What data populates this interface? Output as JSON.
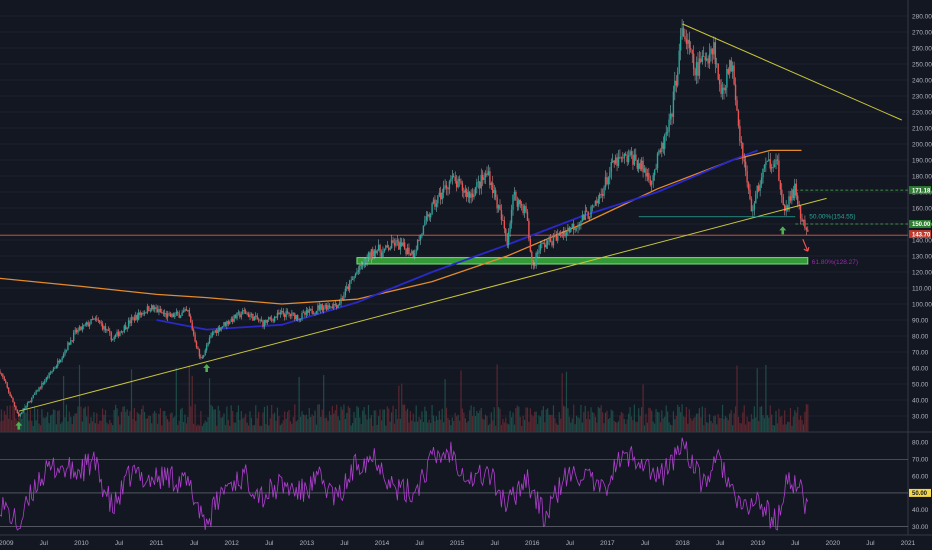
{
  "chart_data": [
    {
      "type": "candlestick",
      "x_axis_type": "date",
      "ylim": [
        20,
        285
      ],
      "xlim": [
        "2008-12",
        "2021-01"
      ],
      "y_ticks": [
        "30.00",
        "40.00",
        "50.00",
        "60.00",
        "70.00",
        "80.00",
        "90.00",
        "100.00",
        "110.00",
        "120.00",
        "130.00",
        "140.00",
        "150.00",
        "160.00",
        "170.00",
        "180.00",
        "190.00",
        "200.00",
        "210.00",
        "220.00",
        "230.00",
        "240.00",
        "250.00",
        "260.00",
        "270.00",
        "280.00"
      ],
      "x_ticks": [
        "2009",
        "Jul",
        "2010",
        "Jul",
        "2011",
        "Jul",
        "2012",
        "Jul",
        "2013",
        "Jul",
        "2014",
        "Jul",
        "2015",
        "Jul",
        "2016",
        "Jul",
        "2017",
        "Jul",
        "2018",
        "Jul",
        "2019",
        "Jul",
        "2020",
        "Jul",
        "2021"
      ],
      "price_series": {
        "t": [
          "2008-12",
          "2009-03",
          "2009-06",
          "2009-09",
          "2009-12",
          "2010-03",
          "2010-04",
          "2010-06",
          "2010-09",
          "2010-12",
          "2011-03",
          "2011-06",
          "2011-08",
          "2011-10",
          "2011-12",
          "2012-03",
          "2012-06",
          "2012-09",
          "2012-12",
          "2013-03",
          "2013-06",
          "2013-09",
          "2013-12",
          "2014-01",
          "2014-03",
          "2014-06",
          "2014-09",
          "2014-12",
          "2015-03",
          "2015-06",
          "2015-09",
          "2015-10",
          "2015-12",
          "2016-01",
          "2016-02",
          "2016-05",
          "2016-08",
          "2016-11",
          "2017-02",
          "2017-05",
          "2017-08",
          "2017-11",
          "2018-01",
          "2018-03",
          "2018-06",
          "2018-07",
          "2018-09",
          "2018-10",
          "2018-12",
          "2019-02",
          "2019-04",
          "2019-05",
          "2019-06",
          "2019-07",
          "2019-08",
          "2019-09"
        ],
        "close": [
          58,
          30,
          46,
          62,
          82,
          90,
          88,
          78,
          90,
          98,
          92,
          95,
          65,
          82,
          88,
          95,
          88,
          94,
          92,
          98,
          100,
          120,
          135,
          132,
          138,
          132,
          160,
          178,
          168,
          182,
          140,
          168,
          158,
          122,
          135,
          142,
          150,
          160,
          188,
          192,
          178,
          212,
          272,
          245,
          262,
          232,
          252,
          210,
          158,
          185,
          192,
          158,
          164,
          172,
          152,
          143
        ]
      },
      "volume_axis_labels": [
        "50.00",
        "40.00",
        "30.00"
      ],
      "indicators": {
        "ma_orange": {
          "t": [
            "2008-12",
            "2010-01",
            "2011-01",
            "2011-09",
            "2012-09",
            "2013-09",
            "2014-09",
            "2015-09",
            "2016-09",
            "2017-09",
            "2018-09",
            "2019-03",
            "2019-08"
          ],
          "v": [
            116,
            111,
            106,
            104,
            100,
            103,
            114,
            130,
            150,
            172,
            190,
            196,
            196
          ]
        },
        "ma_blue": {
          "t": [
            "2011-01",
            "2011-09",
            "2012-09",
            "2013-09",
            "2014-09",
            "2015-09",
            "2016-09",
            "2017-09",
            "2018-09",
            "2019-01"
          ],
          "v": [
            90,
            84,
            87,
            101,
            120,
            137,
            155,
            170,
            190,
            196
          ]
        }
      },
      "trendlines": [
        {
          "name": "resistance",
          "color": "#c9c53a",
          "from": [
            "2018-01",
            275
          ],
          "to": [
            "2020-12",
            215
          ]
        },
        {
          "name": "support",
          "color": "#c9c53a",
          "from": [
            "2009-03",
            33
          ],
          "to": [
            "2019-12",
            166
          ]
        }
      ],
      "levels": [
        {
          "label": "50.00%(154.55)",
          "value": 154.55,
          "from": "2017-06",
          "to": "2019-07",
          "color": "#26a69a"
        },
        {
          "label": "61.80%(128.27)",
          "value": 128.27,
          "from": "2013-09",
          "to": "2019-09",
          "color": "#9c27b0"
        }
      ],
      "zone": {
        "from": "2013-09",
        "to": "2019-09",
        "low": 125,
        "high": 129,
        "color": "#3dbb3d"
      },
      "hlines": [
        {
          "value": 143,
          "color": "#e05a47"
        },
        {
          "value": 171.18,
          "color": "#4caf50",
          "dashed": true,
          "from": "2019-07"
        },
        {
          "value": 150,
          "color": "#4caf50",
          "dashed": true,
          "from": "2019-07"
        }
      ],
      "price_badges": [
        {
          "text": "171.18",
          "value": 171.18,
          "color": "#2e7d32"
        },
        {
          "text": "150.00",
          "value": 150,
          "color": "#2e7d32"
        },
        {
          "text": "143.70",
          "value": 143.7,
          "color": "#c0392b"
        }
      ],
      "markers": {
        "green_arrows": [
          [
            "2009-03",
            24
          ],
          [
            "2011-09",
            60
          ],
          [
            "2019-05",
            146
          ]
        ],
        "red_arrow": [
          "2019-09",
          133
        ]
      }
    },
    {
      "type": "line",
      "name": "RSI",
      "ylim": [
        25,
        85
      ],
      "y_ticks": [
        "80.00",
        "70.00",
        "60.00",
        "40.00",
        "30.00"
      ],
      "current_value": "50.00",
      "reference_lines": [
        70,
        50,
        30
      ],
      "series": {
        "t": [
          "2008-12",
          "2009-03",
          "2009-06",
          "2009-09",
          "2009-12",
          "2010-03",
          "2010-06",
          "2010-09",
          "2010-12",
          "2011-03",
          "2011-06",
          "2011-09",
          "2011-12",
          "2012-03",
          "2012-06",
          "2012-09",
          "2012-12",
          "2013-03",
          "2013-06",
          "2013-09",
          "2013-12",
          "2014-03",
          "2014-06",
          "2014-09",
          "2014-12",
          "2015-03",
          "2015-06",
          "2015-09",
          "2015-12",
          "2016-03",
          "2016-06",
          "2016-09",
          "2016-12",
          "2017-03",
          "2017-06",
          "2017-09",
          "2017-12",
          "2018-01",
          "2018-04",
          "2018-07",
          "2018-10",
          "2019-01",
          "2019-04",
          "2019-06",
          "2019-08",
          "2019-09"
        ],
        "v": [
          45,
          30,
          58,
          66,
          62,
          68,
          40,
          62,
          58,
          60,
          55,
          32,
          54,
          60,
          48,
          55,
          50,
          58,
          46,
          68,
          72,
          52,
          50,
          70,
          75,
          58,
          62,
          42,
          60,
          35,
          58,
          62,
          50,
          70,
          72,
          58,
          72,
          82,
          55,
          70,
          40,
          45,
          32,
          60,
          50,
          40
        ]
      }
    }
  ]
}
